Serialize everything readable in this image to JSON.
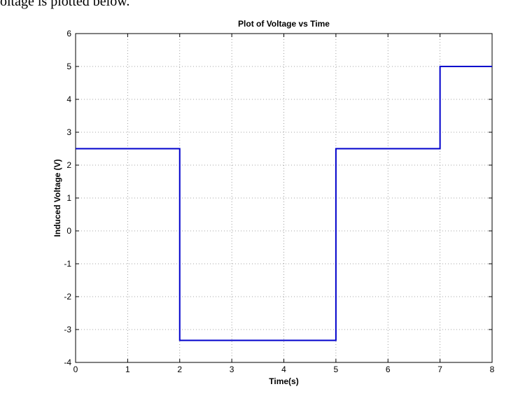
{
  "page_caption": "oltage is plotted below.",
  "chart_data": {
    "type": "line",
    "title": "Plot of Voltage vs Time",
    "xlabel": "Time(s)",
    "ylabel": "Induced Voltage (V)",
    "xlim": [
      0,
      8
    ],
    "ylim": [
      -4,
      6
    ],
    "x_ticks": [
      0,
      1,
      2,
      3,
      4,
      5,
      6,
      7,
      8
    ],
    "y_ticks": [
      -4,
      -3,
      -2,
      -1,
      0,
      1,
      2,
      3,
      4,
      5,
      6
    ],
    "grid": true,
    "series": [
      {
        "color": "#0000cc",
        "x": [
          0,
          2,
          2,
          5,
          5,
          7,
          7,
          8
        ],
        "y": [
          2.5,
          2.5,
          -3.33,
          -3.33,
          2.5,
          2.5,
          5,
          5
        ]
      }
    ]
  }
}
